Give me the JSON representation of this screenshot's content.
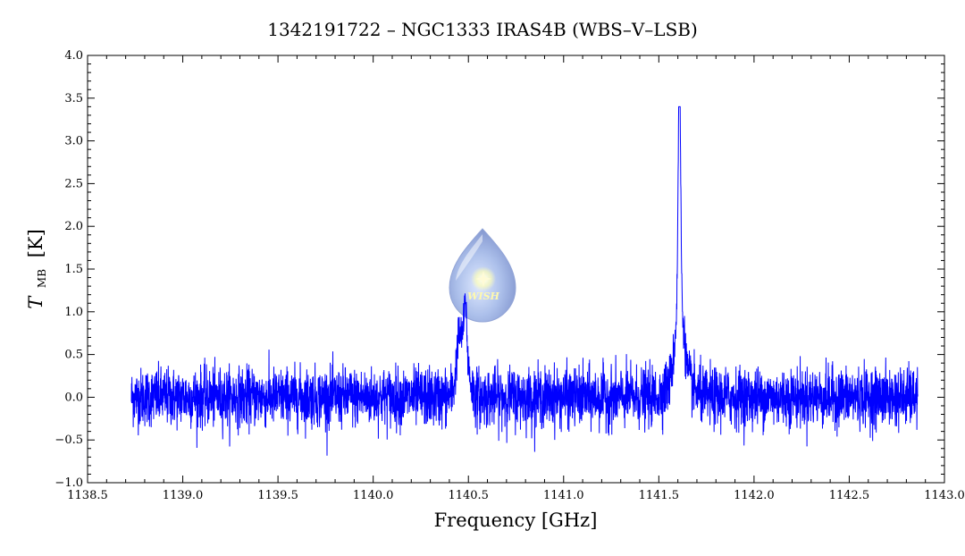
{
  "chart_data": {
    "type": "line",
    "title": "1342191722 – NGC1333 IRAS4B (WBS–V–LSB)",
    "xlabel": "Frequency [GHz]",
    "ylabel_main": "T",
    "ylabel_sub": "MB",
    "ylabel_unit": "[K]",
    "xlim": [
      1138.5,
      1143.0
    ],
    "ylim": [
      -1.0,
      4.0
    ],
    "x_ticks": [
      1138.5,
      1139.0,
      1139.5,
      1140.0,
      1140.5,
      1141.0,
      1141.5,
      1142.0,
      1142.5,
      1143.0
    ],
    "x_tick_labels": [
      "1138.5",
      "1139.0",
      "1139.5",
      "1140.0",
      "1140.5",
      "1141.0",
      "1141.5",
      "1142.0",
      "1142.5",
      "1143.0"
    ],
    "y_ticks": [
      -1.0,
      -0.5,
      0.0,
      0.5,
      1.0,
      1.5,
      2.0,
      2.5,
      3.0,
      3.5,
      4.0
    ],
    "y_tick_labels": [
      "−1.0",
      "−0.5",
      "0.0",
      "0.5",
      "1.0",
      "1.5",
      "2.0",
      "2.5",
      "3.0",
      "3.5",
      "4.0"
    ],
    "grid": false,
    "series": [
      {
        "color": "#0000ff",
        "x_range": [
          1138.73,
          1142.86
        ],
        "noise_rms": 0.17,
        "features": [
          {
            "center": 1140.47,
            "peak": 1.55,
            "note": "broad line with narrow spike"
          },
          {
            "center": 1141.61,
            "peak": 3.4,
            "note": "strong narrow line with wings"
          }
        ]
      }
    ],
    "logo": {
      "text": "WISH",
      "icon": "water-drop-star-icon"
    }
  }
}
